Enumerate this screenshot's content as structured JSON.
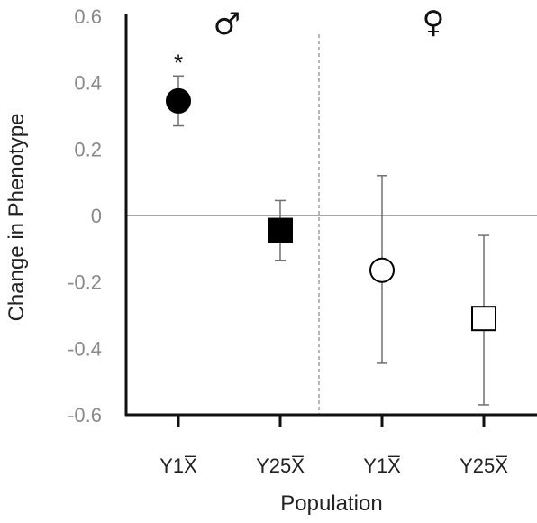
{
  "chart_data": {
    "type": "scatter",
    "ylabel": "Change in Phenotype",
    "xlabel": "Population",
    "ylim": [
      -0.6,
      0.6
    ],
    "yticks": [
      0.6,
      0.4,
      0.2,
      0,
      -0.2,
      -0.4,
      -0.6
    ],
    "ytick_labels": [
      "0.6",
      "0.4",
      "0.2",
      "0",
      "-0.2",
      "-0.4",
      "-0.6"
    ],
    "categories": [
      "Y1X̅",
      "Y25X̅",
      "Y1X̅",
      "Y25X̅"
    ],
    "group_labels": [
      "♂",
      "♀"
    ],
    "points": [
      {
        "category_index": 0,
        "value": 0.345,
        "error_low": 0.27,
        "error_high": 0.42,
        "marker": "circle",
        "filled": true,
        "annotation": "*"
      },
      {
        "category_index": 1,
        "value": -0.045,
        "error_low": -0.135,
        "error_high": 0.045,
        "marker": "square",
        "filled": true,
        "annotation": ""
      },
      {
        "category_index": 2,
        "value": -0.165,
        "error_low": -0.445,
        "error_high": 0.12,
        "marker": "circle",
        "filled": false,
        "annotation": ""
      },
      {
        "category_index": 3,
        "value": -0.31,
        "error_low": -0.57,
        "error_high": -0.06,
        "marker": "square",
        "filled": false,
        "annotation": ""
      }
    ],
    "reference_line_y": 0,
    "group_divider": "dashed",
    "grid": false,
    "colors": {
      "axis": "#111111",
      "tick_text": "#8a8a8a",
      "error_bar": "#707070",
      "zero_line": "#8c8c8c",
      "marker_fill": "#000000",
      "marker_hollow": "#ffffff"
    }
  }
}
